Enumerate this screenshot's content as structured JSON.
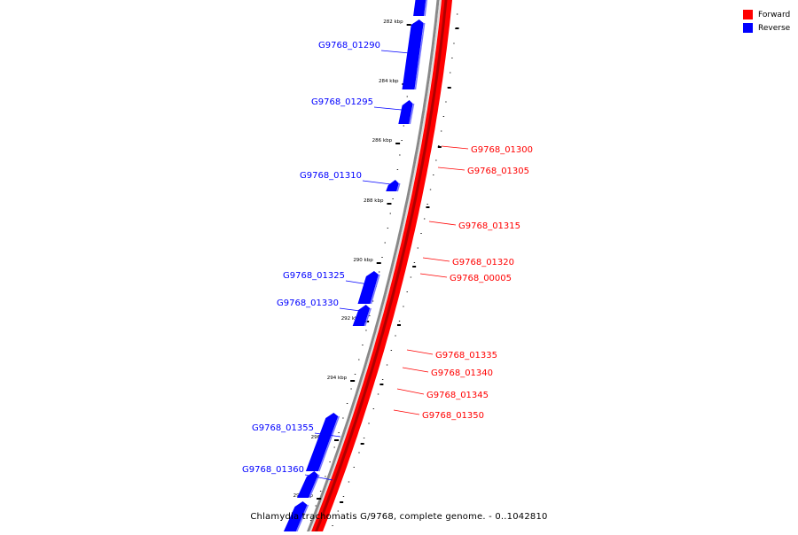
{
  "legend": [
    {
      "label": "Forward",
      "color": "#ff0000"
    },
    {
      "label": "Reverse",
      "color": "#0000ff"
    }
  ],
  "caption": "Chlamydia trachomatis G/9768, complete genome. - 0..1042810",
  "colors": {
    "forward": "#ff0000",
    "forward_dark": "#b00000",
    "reverse": "#0000ff",
    "reverse_light": "#7777ff",
    "backbone": "#888888"
  },
  "ticks": [
    {
      "label": "282 kbp"
    },
    {
      "label": "284 kbp"
    },
    {
      "label": "286 kbp"
    },
    {
      "label": "288 kbp"
    },
    {
      "label": "290 kbp"
    },
    {
      "label": "292 kbp"
    },
    {
      "label": "294 kbp"
    },
    {
      "label": "296 kbp"
    },
    {
      "label": "298 kbp"
    }
  ],
  "reverse_genes": [
    {
      "label": "G9768_01290"
    },
    {
      "label": "G9768_01295"
    },
    {
      "label": "G9768_01310"
    },
    {
      "label": "G9768_01325"
    },
    {
      "label": "G9768_01330"
    },
    {
      "label": "G9768_01355"
    },
    {
      "label": "G9768_01360"
    }
  ],
  "forward_genes": [
    {
      "label": "G9768_01300"
    },
    {
      "label": "G9768_01305"
    },
    {
      "label": "G9768_01315"
    },
    {
      "label": "G9768_01320"
    },
    {
      "label": "G9768_00005"
    },
    {
      "label": "G9768_01335"
    },
    {
      "label": "G9768_01340"
    },
    {
      "label": "G9768_01345"
    },
    {
      "label": "G9768_01350"
    }
  ]
}
